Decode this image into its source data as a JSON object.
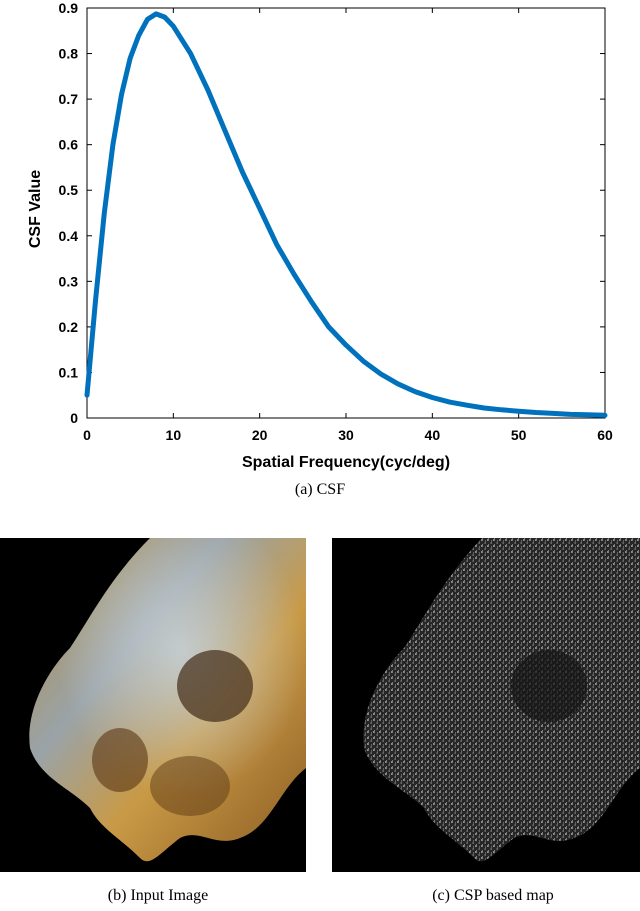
{
  "chart_data": {
    "type": "line",
    "xlabel": "Spatial Frequency(cyc/deg)",
    "ylabel": "CSF Value",
    "xlim": [
      0,
      60
    ],
    "ylim": [
      0,
      0.9
    ],
    "xticks": [
      0,
      10,
      20,
      30,
      40,
      50,
      60
    ],
    "yticks": [
      0,
      0.1,
      0.2,
      0.3,
      0.4,
      0.5,
      0.6,
      0.7,
      0.8,
      0.9
    ],
    "grid": false,
    "line_color": "#0072BD",
    "series": [
      {
        "x": [
          0,
          1,
          2,
          3,
          4,
          5,
          6,
          7,
          8,
          9,
          10,
          12,
          14,
          16,
          18,
          20,
          22,
          24,
          26,
          28,
          30,
          32,
          34,
          36,
          38,
          40,
          42,
          44,
          46,
          48,
          50,
          52,
          54,
          56,
          58,
          60
        ],
        "values": [
          0.05,
          0.26,
          0.45,
          0.6,
          0.71,
          0.79,
          0.84,
          0.875,
          0.887,
          0.88,
          0.86,
          0.8,
          0.72,
          0.63,
          0.54,
          0.46,
          0.38,
          0.315,
          0.255,
          0.2,
          0.16,
          0.125,
          0.097,
          0.075,
          0.058,
          0.045,
          0.035,
          0.028,
          0.022,
          0.018,
          0.015,
          0.012,
          0.01,
          0.008,
          0.007,
          0.006
        ]
      }
    ]
  },
  "captions": {
    "a": "(a) CSF",
    "b": "(b) Input Image",
    "c": "(c) CSP based map"
  }
}
